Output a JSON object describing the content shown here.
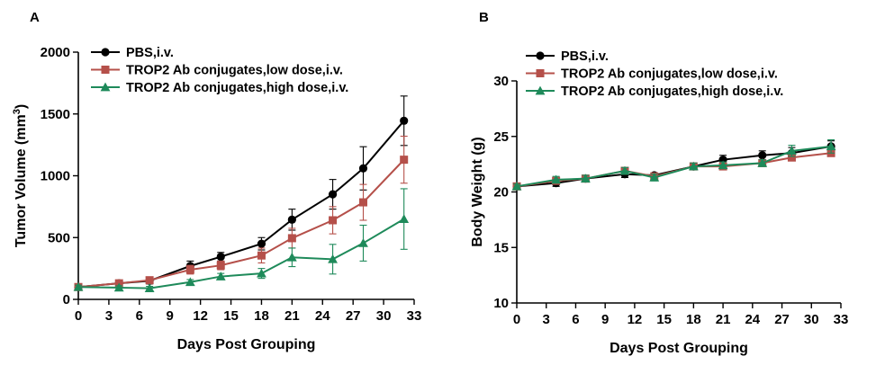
{
  "chart_data": [
    {
      "panel_label": "A",
      "type": "line",
      "xlabel": "Days Post Grouping",
      "ylabel": "Tumor Volume (mm",
      "ylabel_superscript": "3",
      "ylabel_suffix": ")",
      "xlim": [
        0,
        33
      ],
      "ylim": [
        0,
        2000
      ],
      "xticks": [
        0,
        3,
        6,
        9,
        12,
        15,
        18,
        21,
        24,
        27,
        30,
        33
      ],
      "yticks": [
        0,
        500,
        1000,
        1500,
        2000
      ],
      "grid": false,
      "legend_position": "top-left",
      "series": [
        {
          "name": "PBS,i.v.",
          "color": "#000000",
          "marker": "circle",
          "x": [
            0,
            4,
            7,
            11,
            14,
            18,
            21,
            25,
            28,
            32
          ],
          "y": [
            100,
            130,
            150,
            270,
            345,
            450,
            645,
            850,
            1060,
            1445
          ],
          "err": [
            20,
            20,
            25,
            40,
            35,
            50,
            85,
            120,
            175,
            200
          ]
        },
        {
          "name": "TROP2 Ab conjugates,low dose,i.v.",
          "color": "#b5504a",
          "marker": "square",
          "x": [
            0,
            4,
            7,
            11,
            14,
            18,
            21,
            25,
            28,
            32
          ],
          "y": [
            100,
            130,
            155,
            240,
            275,
            355,
            495,
            640,
            785,
            1130
          ],
          "err": [
            20,
            20,
            25,
            35,
            35,
            60,
            80,
            110,
            145,
            190
          ]
        },
        {
          "name": "TROP2 Ab conjugates,high dose,i.v.",
          "color": "#1e8a5a",
          "marker": "triangle",
          "x": [
            0,
            4,
            7,
            11,
            14,
            18,
            21,
            25,
            28,
            32
          ],
          "y": [
            100,
            95,
            90,
            140,
            185,
            210,
            340,
            325,
            455,
            650
          ],
          "err": [
            15,
            15,
            15,
            20,
            25,
            40,
            75,
            120,
            145,
            245
          ]
        }
      ]
    },
    {
      "panel_label": "B",
      "type": "line",
      "xlabel": "Days Post Grouping",
      "ylabel": "Body Weight (g)",
      "xlim": [
        0,
        33
      ],
      "ylim": [
        10,
        30
      ],
      "xticks": [
        0,
        3,
        6,
        9,
        12,
        15,
        18,
        21,
        24,
        27,
        30,
        33
      ],
      "yticks": [
        10,
        15,
        20,
        25,
        30
      ],
      "grid": false,
      "legend_position": "top-left",
      "series": [
        {
          "name": "PBS,i.v.",
          "color": "#000000",
          "marker": "circle",
          "x": [
            0,
            4,
            7,
            11,
            14,
            18,
            21,
            25,
            28,
            32
          ],
          "y": [
            20.5,
            20.8,
            21.2,
            21.6,
            21.5,
            22.3,
            22.9,
            23.3,
            23.5,
            24.1
          ],
          "err": [
            0.2,
            0.3,
            0.3,
            0.3,
            0.2,
            0.3,
            0.4,
            0.4,
            0.5,
            0.5
          ]
        },
        {
          "name": "TROP2 Ab conjugates,low dose,i.v.",
          "color": "#b5504a",
          "marker": "square",
          "x": [
            0,
            4,
            7,
            11,
            14,
            18,
            21,
            25,
            28,
            32
          ],
          "y": [
            20.5,
            21.0,
            21.2,
            21.9,
            21.4,
            22.3,
            22.3,
            22.6,
            23.1,
            23.5
          ],
          "err": [
            0.2,
            0.3,
            0.3,
            0.3,
            0.3,
            0.3,
            0.3,
            0.3,
            0.3,
            0.3
          ]
        },
        {
          "name": "TROP2 Ab conjugates,high dose,i.v.",
          "color": "#1e8a5a",
          "marker": "triangle",
          "x": [
            0,
            4,
            7,
            11,
            14,
            18,
            21,
            25,
            28,
            32
          ],
          "y": [
            20.5,
            21.1,
            21.2,
            21.9,
            21.3,
            22.3,
            22.4,
            22.6,
            23.7,
            24.1
          ],
          "err": [
            0.2,
            0.3,
            0.3,
            0.3,
            0.3,
            0.3,
            0.3,
            0.3,
            0.5,
            0.6
          ]
        }
      ]
    }
  ]
}
